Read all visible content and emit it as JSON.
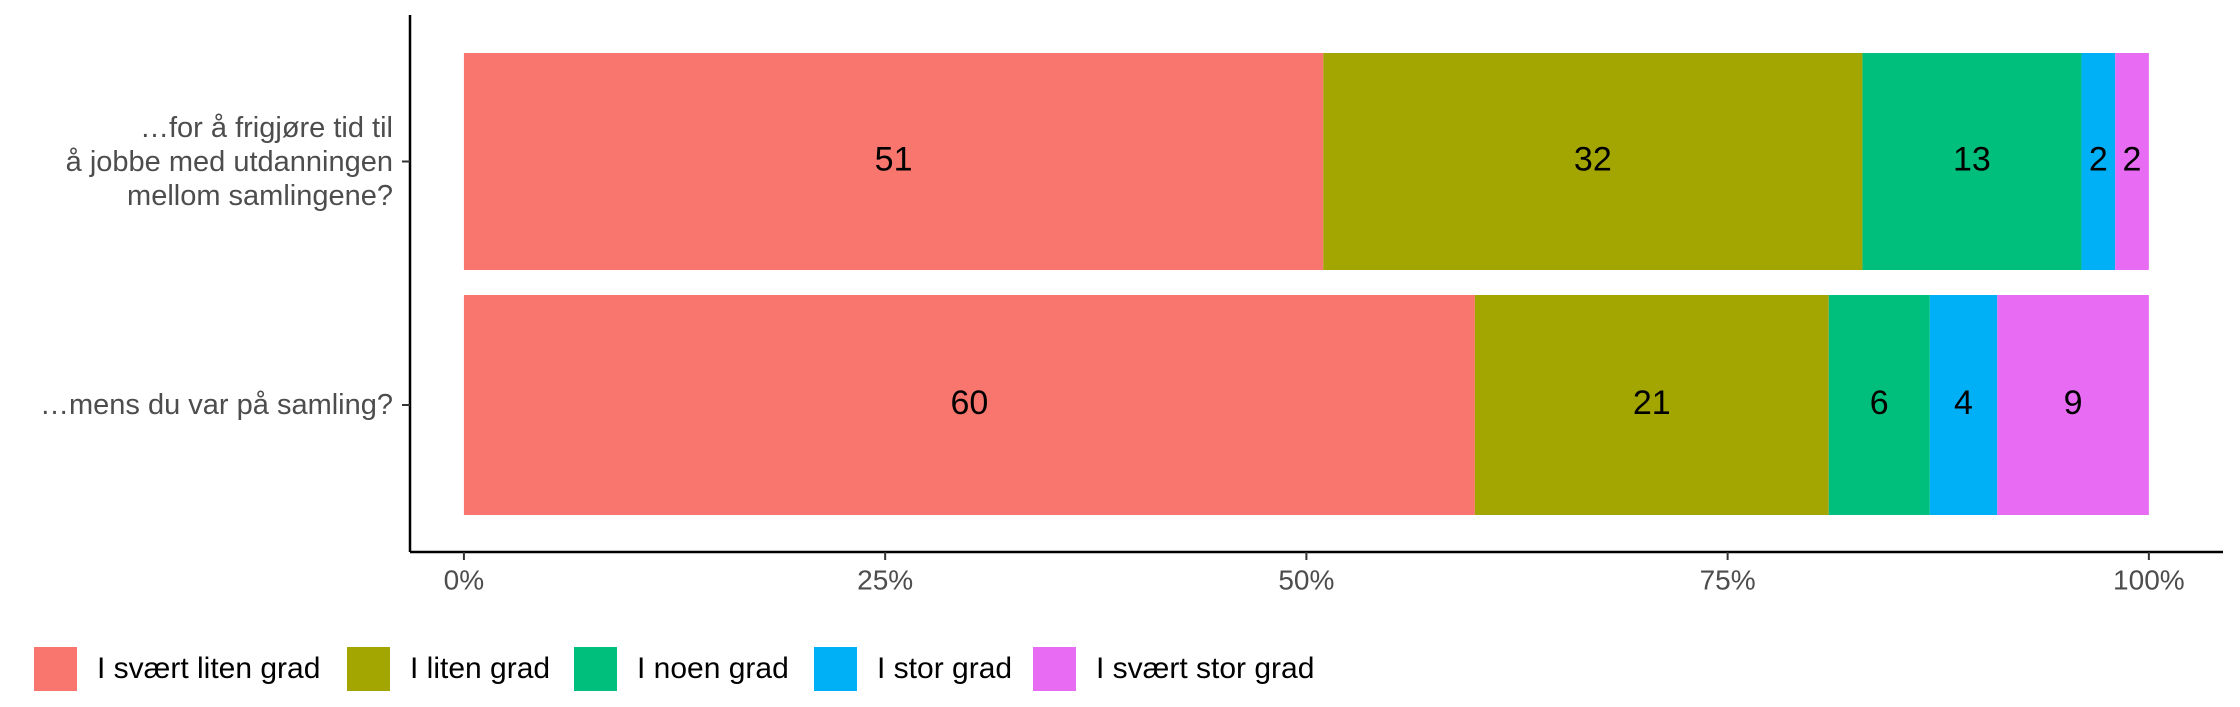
{
  "chart_data": {
    "type": "stacked-bar-horizontal",
    "categories": [
      "…for å frigjøre tid til\nå jobbe med utdanningen\nmellom samlingene?",
      "…mens du var på samling?"
    ],
    "series": [
      {
        "name": "I svært liten grad",
        "color": "#f8766d",
        "values": [
          51,
          60
        ]
      },
      {
        "name": "I liten grad",
        "color": "#a3a500",
        "values": [
          32,
          21
        ]
      },
      {
        "name": "I noen grad",
        "color": "#00bf7d",
        "values": [
          13,
          6
        ]
      },
      {
        "name": "I stor grad",
        "color": "#00b0f6",
        "values": [
          2,
          4
        ]
      },
      {
        "name": "I svært stor grad",
        "color": "#e76bf3",
        "values": [
          2,
          9
        ]
      }
    ],
    "xlim": [
      -3.2,
      104.4
    ],
    "xticks": [
      {
        "value": 0,
        "label": "0%"
      },
      {
        "value": 25,
        "label": "25%"
      },
      {
        "value": 50,
        "label": "50%"
      },
      {
        "value": 75,
        "label": "75%"
      },
      {
        "value": 100,
        "label": "100%"
      }
    ],
    "legend": "bottom"
  }
}
